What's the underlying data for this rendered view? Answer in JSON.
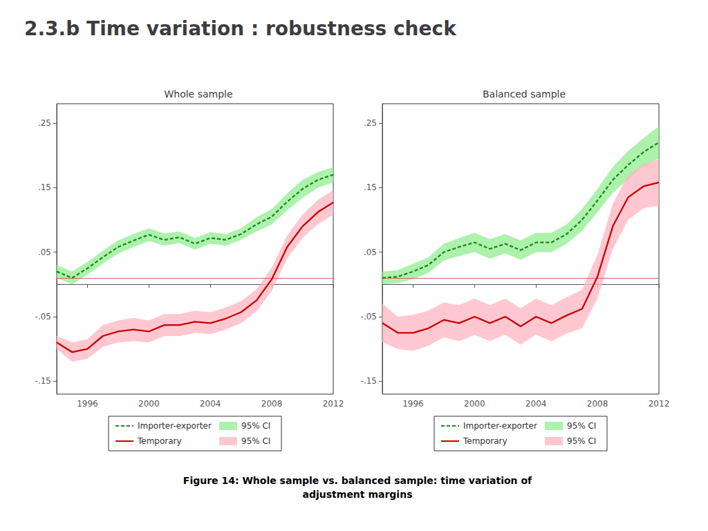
{
  "title": "2.3.b Time variation : robustness check",
  "annotations": [
    "Figure 14: Whole sample vs. balanced sample: time variation of\nadjustment margins"
  ],
  "chart_data": [
    {
      "type": "line",
      "title": "Whole sample",
      "legend": "bottom",
      "grid": false,
      "x": [
        1994,
        1995,
        1996,
        1997,
        1998,
        1999,
        2000,
        2001,
        2002,
        2003,
        2004,
        2005,
        2006,
        2007,
        2008,
        2009,
        2010,
        2011,
        2012
      ],
      "xlim": [
        1994,
        2012
      ],
      "xticks": [
        1996,
        2000,
        2004,
        2008,
        2012
      ],
      "ylim": [
        -0.17,
        0.28
      ],
      "yticks": [
        {
          "value": -0.15,
          "label": "-.15"
        },
        {
          "value": -0.05,
          "label": "-.05"
        },
        {
          "value": 0.05,
          "label": ".05"
        },
        {
          "value": 0.15,
          "label": ".15"
        },
        {
          "value": 0.25,
          "label": ".25"
        }
      ],
      "reference_line": {
        "value": 0.012,
        "color": "#CC6666"
      },
      "series": [
        {
          "name": "Importer-exporter",
          "color": "#1a8a1a",
          "line_style": "dashed",
          "values": [
            0.02,
            0.01,
            0.025,
            0.042,
            0.058,
            0.068,
            0.077,
            0.069,
            0.073,
            0.063,
            0.072,
            0.069,
            0.078,
            0.093,
            0.105,
            0.128,
            0.148,
            0.162,
            0.17
          ]
        },
        {
          "name": "Temporary",
          "color": "#CC0000",
          "line_style": "solid",
          "values": [
            -0.09,
            -0.105,
            -0.1,
            -0.08,
            -0.073,
            -0.07,
            -0.073,
            -0.063,
            -0.063,
            -0.058,
            -0.06,
            -0.053,
            -0.043,
            -0.025,
            0.008,
            0.058,
            0.09,
            0.112,
            0.127
          ]
        },
        {
          "name": "95% CI",
          "type": "band",
          "color": "#90EE90",
          "lower": [
            0.01,
            0.0,
            0.015,
            0.032,
            0.048,
            0.058,
            0.067,
            0.06,
            0.064,
            0.054,
            0.063,
            0.06,
            0.069,
            0.082,
            0.093,
            0.115,
            0.134,
            0.15,
            0.158
          ],
          "upper": [
            0.03,
            0.02,
            0.035,
            0.052,
            0.068,
            0.078,
            0.087,
            0.079,
            0.082,
            0.072,
            0.081,
            0.078,
            0.087,
            0.104,
            0.117,
            0.141,
            0.162,
            0.174,
            0.182
          ]
        },
        {
          "name": "95% CI",
          "type": "band",
          "color": "#FFB6C1",
          "lower": [
            -0.1,
            -0.12,
            -0.115,
            -0.097,
            -0.09,
            -0.088,
            -0.09,
            -0.08,
            -0.08,
            -0.075,
            -0.077,
            -0.07,
            -0.06,
            -0.042,
            -0.01,
            0.04,
            0.072,
            0.093,
            0.108
          ],
          "upper": [
            -0.08,
            -0.09,
            -0.085,
            -0.063,
            -0.056,
            -0.052,
            -0.056,
            -0.046,
            -0.046,
            -0.041,
            -0.043,
            -0.036,
            -0.026,
            -0.008,
            0.026,
            0.076,
            0.108,
            0.131,
            0.146
          ]
        }
      ]
    },
    {
      "type": "line",
      "title": "Balanced sample",
      "legend": "bottom",
      "grid": false,
      "x": [
        1994,
        1995,
        1996,
        1997,
        1998,
        1999,
        2000,
        2001,
        2002,
        2003,
        2004,
        2005,
        2006,
        2007,
        2008,
        2009,
        2010,
        2011,
        2012
      ],
      "xlim": [
        1994,
        2012
      ],
      "xticks": [
        1996,
        2000,
        2004,
        2008,
        2012
      ],
      "ylim": [
        -0.17,
        0.28
      ],
      "yticks": [
        {
          "value": -0.15,
          "label": "-.15"
        },
        {
          "value": -0.05,
          "label": "-.05"
        },
        {
          "value": 0.05,
          "label": ".05"
        },
        {
          "value": 0.15,
          "label": ".15"
        },
        {
          "value": 0.25,
          "label": ".25"
        }
      ],
      "reference_line": {
        "value": 0.012,
        "color": "#CC6666"
      },
      "series": [
        {
          "name": "Importer-exporter",
          "color": "#1a8a1a",
          "line_style": "dashed",
          "values": [
            0.01,
            0.012,
            0.02,
            0.03,
            0.05,
            0.058,
            0.065,
            0.055,
            0.063,
            0.053,
            0.065,
            0.065,
            0.078,
            0.1,
            0.13,
            0.162,
            0.185,
            0.205,
            0.22
          ]
        },
        {
          "name": "Temporary",
          "color": "#CC0000",
          "line_style": "solid",
          "values": [
            -0.06,
            -0.075,
            -0.075,
            -0.068,
            -0.055,
            -0.06,
            -0.05,
            -0.06,
            -0.05,
            -0.065,
            -0.05,
            -0.06,
            -0.048,
            -0.038,
            0.012,
            0.09,
            0.135,
            0.152,
            0.158
          ]
        },
        {
          "name": "95% CI",
          "type": "band",
          "color": "#90EE90",
          "lower": [
            0.0,
            0.002,
            0.008,
            0.018,
            0.037,
            0.044,
            0.05,
            0.04,
            0.048,
            0.038,
            0.05,
            0.05,
            0.063,
            0.083,
            0.112,
            0.142,
            0.163,
            0.183,
            0.195
          ],
          "upper": [
            0.02,
            0.022,
            0.032,
            0.042,
            0.063,
            0.072,
            0.08,
            0.07,
            0.078,
            0.068,
            0.08,
            0.08,
            0.093,
            0.117,
            0.148,
            0.182,
            0.207,
            0.227,
            0.245
          ]
        },
        {
          "name": "95% CI",
          "type": "band",
          "color": "#FFB6C1",
          "lower": [
            -0.09,
            -0.1,
            -0.103,
            -0.095,
            -0.082,
            -0.088,
            -0.078,
            -0.088,
            -0.078,
            -0.093,
            -0.078,
            -0.088,
            -0.076,
            -0.068,
            -0.022,
            0.055,
            0.1,
            0.118,
            0.122
          ],
          "upper": [
            -0.03,
            -0.05,
            -0.047,
            -0.041,
            -0.028,
            -0.032,
            -0.022,
            -0.032,
            -0.022,
            -0.037,
            -0.022,
            -0.032,
            -0.02,
            -0.008,
            0.046,
            0.125,
            0.17,
            0.186,
            0.194
          ]
        }
      ]
    }
  ]
}
